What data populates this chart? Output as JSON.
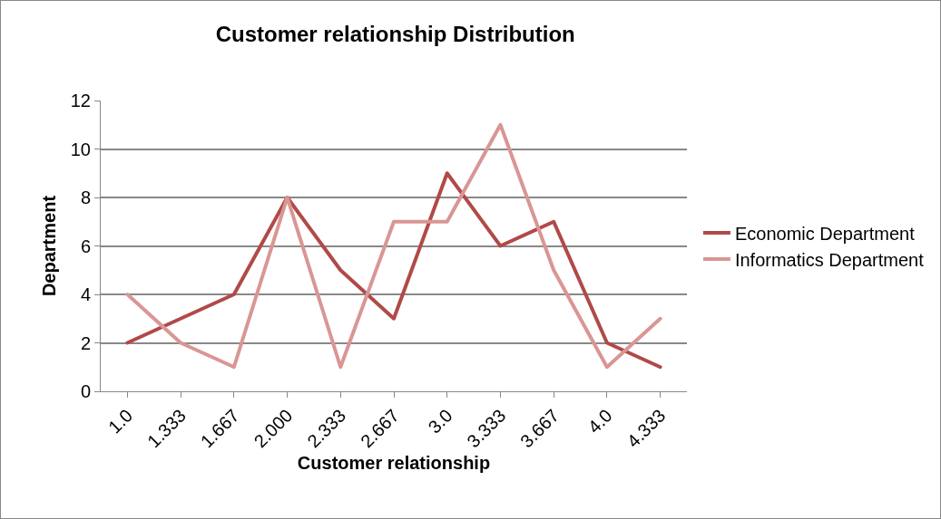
{
  "chart_data": {
    "type": "line",
    "title": "Customer relationship Distribution",
    "xlabel": "Customer relationship",
    "ylabel": "Department",
    "categories": [
      "1.0",
      "1.333",
      "1.667",
      "2.000",
      "2.333",
      "2.667",
      "3.0",
      "3.333",
      "3.667",
      "4.0",
      "4.333"
    ],
    "series": [
      {
        "name": "Economic Department",
        "color": "#b04a48",
        "values": [
          2,
          3,
          4,
          8,
          5,
          3,
          9,
          6,
          7,
          2,
          1
        ]
      },
      {
        "name": "Informatics Department",
        "color": "#d99694",
        "values": [
          4,
          2,
          1,
          8,
          1,
          7,
          7,
          11,
          5,
          1,
          3
        ]
      }
    ],
    "ylim": [
      0,
      12
    ],
    "yticks": [
      0,
      2,
      4,
      6,
      8,
      10,
      12
    ],
    "grid": "y",
    "legend": "right",
    "marker": "none",
    "line_style": "solid"
  }
}
